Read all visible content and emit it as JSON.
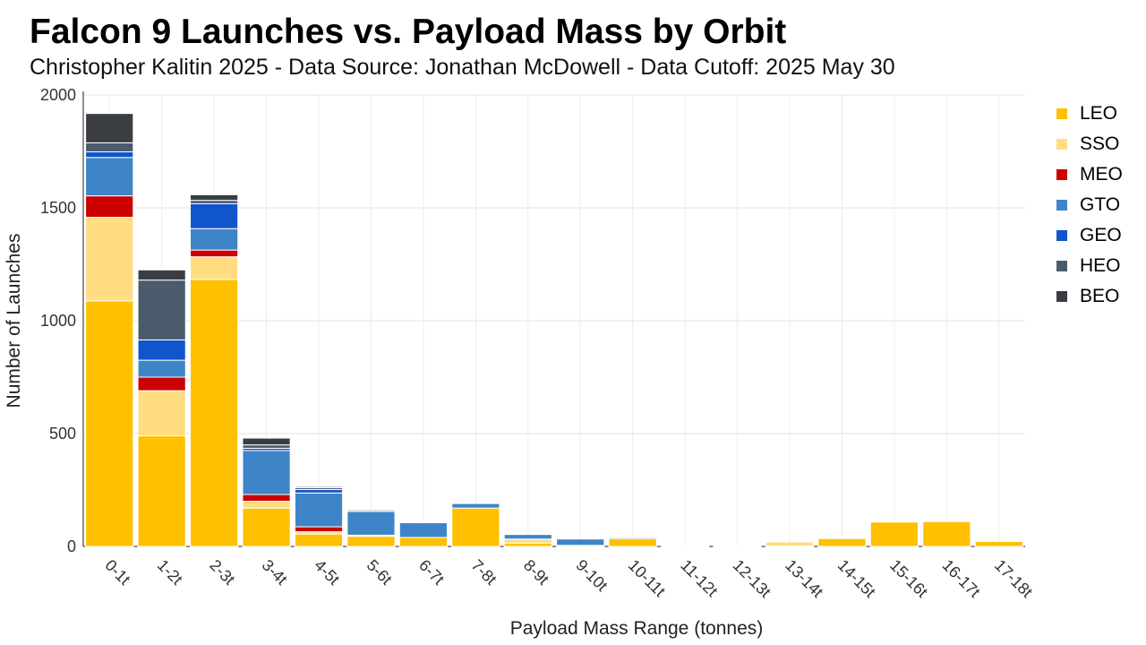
{
  "chart_data": {
    "type": "bar",
    "stacked": true,
    "title": "Falcon 9 Launches vs. Payload Mass by Orbit",
    "subtitle": "Christopher Kalitin 2025 - Data Source: Jonathan McDowell - Data Cutoff: 2025 May 30",
    "xlabel": "Payload Mass Range (tonnes)",
    "ylabel": "Number of Launches",
    "ylim": [
      0,
      2000
    ],
    "yticks": [
      0,
      500,
      1000,
      1500,
      2000
    ],
    "grid": true,
    "legend_position": "right",
    "categories": [
      "0-1t",
      "1-2t",
      "2-3t",
      "3-4t",
      "4-5t",
      "5-6t",
      "6-7t",
      "7-8t",
      "8-9t",
      "9-10t",
      "10-11t",
      "11-12t",
      "12-13t",
      "13-14t",
      "14-15t",
      "15-16t",
      "16-17t",
      "17-18t"
    ],
    "series": [
      {
        "name": "LEO",
        "color": "#FFC000",
        "values": [
          1088,
          490,
          1183,
          170,
          55,
          45,
          40,
          170,
          15,
          5,
          35,
          2,
          1,
          2,
          35,
          108,
          110,
          22
        ]
      },
      {
        "name": "SSO",
        "color": "#FFDD80",
        "values": [
          370,
          200,
          100,
          30,
          10,
          5,
          0,
          0,
          18,
          0,
          0,
          0,
          0,
          18,
          0,
          0,
          0,
          0
        ]
      },
      {
        "name": "MEO",
        "color": "#CC0000",
        "values": [
          95,
          60,
          30,
          30,
          22,
          0,
          0,
          0,
          0,
          0,
          0,
          0,
          0,
          0,
          0,
          0,
          0,
          0
        ]
      },
      {
        "name": "GTO",
        "color": "#3D85C6",
        "values": [
          170,
          75,
          95,
          195,
          150,
          105,
          65,
          20,
          20,
          28,
          5,
          0,
          0,
          0,
          0,
          0,
          0,
          0
        ]
      },
      {
        "name": "GEO",
        "color": "#1155CC",
        "values": [
          25,
          90,
          110,
          10,
          15,
          5,
          0,
          0,
          0,
          0,
          0,
          0,
          0,
          0,
          0,
          0,
          0,
          0
        ]
      },
      {
        "name": "HEO",
        "color": "#4C5B6C",
        "values": [
          40,
          265,
          15,
          15,
          8,
          5,
          0,
          0,
          0,
          0,
          0,
          0,
          0,
          0,
          0,
          0,
          0,
          0
        ]
      },
      {
        "name": "BEO",
        "color": "#3A3D42",
        "values": [
          130,
          45,
          25,
          30,
          5,
          3,
          0,
          0,
          0,
          0,
          2,
          0,
          0,
          0,
          0,
          0,
          0,
          0
        ]
      }
    ]
  }
}
